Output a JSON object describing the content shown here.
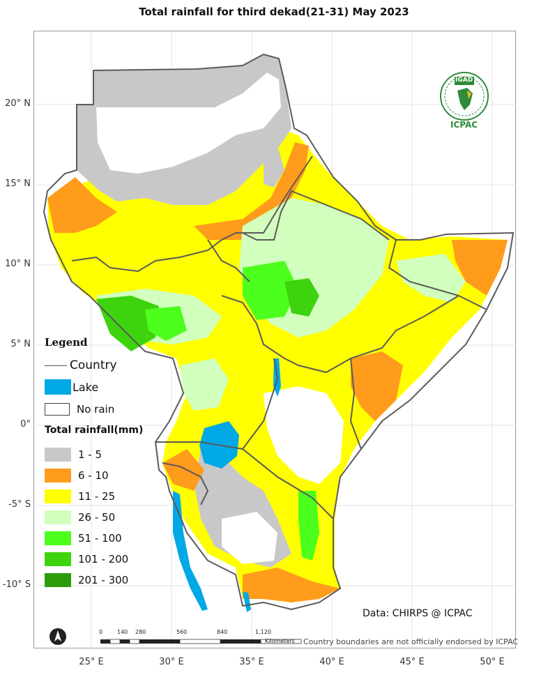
{
  "title": "Total rainfall  for  third dekad(21-31)  May 2023",
  "lat_labels": [
    "20° N",
    "15° N",
    "10° N",
    "5° N",
    "0°",
    "-5° S",
    "-10° S"
  ],
  "lon_labels": [
    "25° E",
    "30° E",
    "35° E",
    "40° E",
    "45° E",
    "50° E"
  ],
  "legend": {
    "heading": "Legend",
    "country_label": "Country",
    "lake_label": "Lake",
    "no_rain_label": "No rain",
    "rainfall_heading": "Total rainfall(mm)",
    "classes": [
      {
        "label": "1 - 5",
        "color": "#c8c8c8"
      },
      {
        "label": "6 - 10",
        "color": "#ff9c1c"
      },
      {
        "label": "11 - 25",
        "color": "#ffff00"
      },
      {
        "label": "26 - 50",
        "color": "#d2ffbe"
      },
      {
        "label": "51 - 100",
        "color": "#4cff1c"
      },
      {
        "label": "101 - 200",
        "color": "#3dd40e"
      },
      {
        "label": "201 - 300",
        "color": "#2e9c0a"
      }
    ],
    "lake_color": "#00a8e6",
    "no_rain_color": "#ffffff"
  },
  "data_credit": "Data: CHIRPS @ ICPAC",
  "disclaimer": "Country boundaries are not officially endorsed by ICPAC",
  "scale_bar": {
    "ticks": [
      "0",
      "140",
      "280",
      "560",
      "840",
      "1,120"
    ],
    "unit": "Kilometers"
  },
  "logo": {
    "top_text": "IGAD",
    "bottom_text": "ICPAC"
  }
}
